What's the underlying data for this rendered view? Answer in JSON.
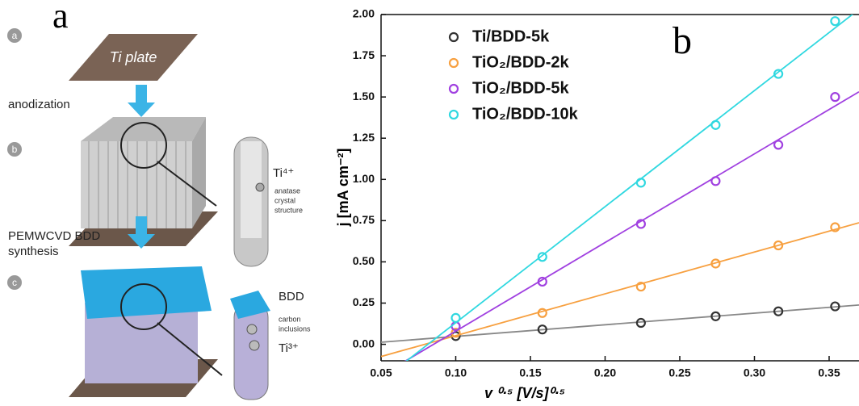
{
  "panel_a": {
    "label": "a",
    "steps": [
      "a",
      "b",
      "c"
    ],
    "plate": "Ti plate",
    "step1": "anodization",
    "ion1": "Ti⁴⁺",
    "ion1_note": [
      "anatase",
      "crystal",
      "structure"
    ],
    "step2": [
      "PEMWCVD BDD",
      "synthesis"
    ],
    "bdd": "BDD",
    "inclusions": [
      "carbon",
      "inclusions"
    ],
    "ion2": "Ti³⁺"
  },
  "chart_data": {
    "type": "scatter",
    "panel_label": "b",
    "x_label": "v ⁰·⁵ [V/s]⁰·⁵",
    "y_label": "j [mA cm⁻²]",
    "x": [
      0.1,
      0.158,
      0.224,
      0.274,
      0.316,
      0.354
    ],
    "series": [
      {
        "name": "Ti/BDD-5k",
        "color": "#333333",
        "line_color": "#888888",
        "values": [
          0.05,
          0.09,
          0.13,
          0.17,
          0.2,
          0.23
        ]
      },
      {
        "name": "TiO₂/BDD-2k",
        "color": "#f7a040",
        "line_color": "#f7a040",
        "values": [
          0.07,
          0.19,
          0.35,
          0.49,
          0.6,
          0.71
        ]
      },
      {
        "name": "TiO₂/BDD-5k",
        "color": "#a040e0",
        "line_color": "#a040e0",
        "values": [
          0.11,
          0.38,
          0.73,
          0.99,
          1.21,
          1.5
        ]
      },
      {
        "name": "TiO₂/BDD-10k",
        "color": "#30d8e0",
        "line_color": "#30d8e0",
        "values": [
          0.16,
          0.53,
          0.98,
          1.33,
          1.64,
          1.96
        ]
      }
    ],
    "fit_lines": true,
    "xlim": [
      0.05,
      0.37
    ],
    "ylim": [
      -0.1,
      2.0
    ],
    "xticks": [
      0.05,
      {
        "value": 0.1,
        "label": "0.10"
      },
      0.15,
      {
        "value": 0.2,
        "label": "0.20"
      },
      0.25,
      {
        "value": 0.3,
        "label": "0.30"
      },
      0.35
    ],
    "yticks": [
      {
        "value": 0,
        "label": "0.00"
      },
      0.25,
      {
        "value": 0.5,
        "label": "0.50"
      },
      0.75,
      {
        "value": 1,
        "label": "1.00"
      },
      1.25,
      {
        "value": 1.5,
        "label": "1.50"
      },
      1.75,
      {
        "value": 2,
        "label": "2.00"
      }
    ],
    "grid": false
  }
}
